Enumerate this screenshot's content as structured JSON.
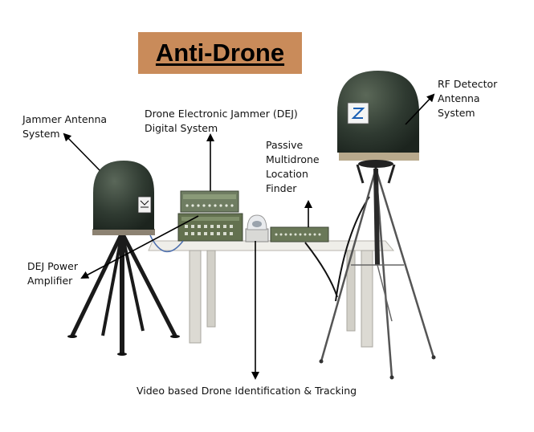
{
  "title": "Anti-Drone",
  "labels": {
    "jammer_antenna": [
      "Jammer Antenna",
      "System"
    ],
    "dej_digital": [
      "Drone Electronic Jammer (DEJ)",
      "Digital System"
    ],
    "passive_finder": [
      "Passive",
      "Multidrone",
      "Location",
      "Finder"
    ],
    "rf_detector": [
      "RF Detector",
      "Antenna",
      "System"
    ],
    "dej_amplifier": [
      "DEJ Power",
      "Amplifier"
    ],
    "video_tracking": "Video based Drone Identification & Tracking"
  },
  "colors": {
    "title_bg": "#c98b5a",
    "dome": "#2f3a31",
    "equipment": "#6f7d62",
    "tripod": "#1a1a1a",
    "table": "#e6e4de"
  }
}
